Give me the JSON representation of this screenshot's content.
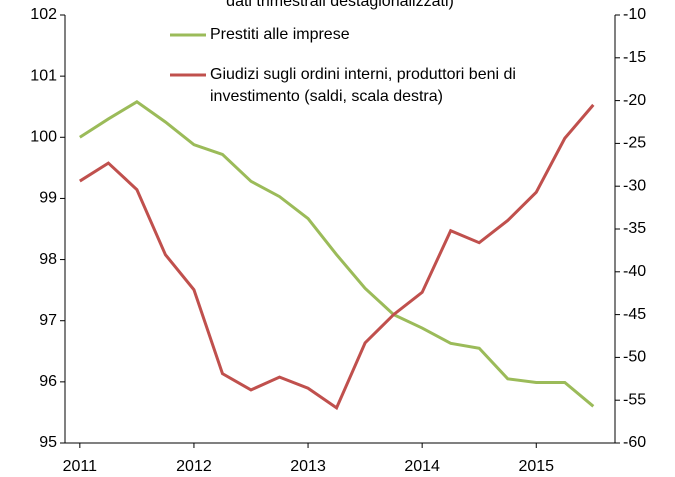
{
  "chart_data": {
    "type": "line",
    "subtitle": "dati trimestrali destagionalizzati)",
    "x": [
      2011,
      2011.25,
      2011.5,
      2011.75,
      2012,
      2012.25,
      2012.5,
      2012.75,
      2013,
      2013.25,
      2013.5,
      2013.75,
      2014,
      2014.25,
      2014.5,
      2014.75,
      2015,
      2015.25,
      2015.5
    ],
    "series": [
      {
        "name": "Prestiti alle imprese",
        "color": "#9bbb59",
        "values": [
          100.0,
          100.3,
          100.58,
          100.25,
          99.88,
          99.72,
          99.28,
          99.03,
          98.67,
          98.08,
          97.53,
          97.1,
          96.88,
          96.63,
          96.55,
          96.05,
          95.99,
          95.99,
          95.6
        ]
      },
      {
        "name": "Giudizi sugli ordini interni, produttori beni di investimento (saldi, scala destra)",
        "color": "#c0504d",
        "axis": "y2",
        "values": [
          -29.4,
          -27.3,
          -30.4,
          -38.0,
          -42.1,
          -51.9,
          -53.8,
          -52.3,
          -53.6,
          -55.9,
          -48.3,
          -45.0,
          -42.4,
          -35.2,
          -36.6,
          -34.0,
          -30.7,
          -24.4,
          -20.5
        ]
      }
    ],
    "xlim": [
      2010.87,
      2015.69
    ],
    "xticks": [
      2011,
      2012,
      2013,
      2014,
      2015
    ],
    "ylim": [
      95,
      102
    ],
    "yticks": [
      95,
      96,
      97,
      98,
      99,
      100,
      101,
      102
    ],
    "y2lim": [
      -60,
      -10
    ],
    "y2ticks": [
      -60,
      -55,
      -50,
      -45,
      -40,
      -35,
      -30,
      -25,
      -20,
      -15,
      -10
    ],
    "grid": false
  }
}
